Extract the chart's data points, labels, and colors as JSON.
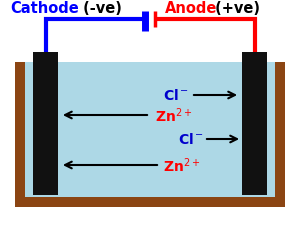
{
  "bg_color": "#ffffff",
  "tank_color": "#8B4513",
  "liquid_color": "#add8e6",
  "electrode_color": "#111111",
  "cathode_color": "#0000ff",
  "anode_color": "#ff0000",
  "paren_color": "#000000",
  "zn_color": "#ff0000",
  "cl_color": "#0000cc",
  "figsize": [
    3.0,
    2.28
  ],
  "dpi": 100,
  "cathode_text": "Cathode",
  "cathode_paren": "(-ve)",
  "anode_text": "Anode",
  "anode_paren": "(+ve)"
}
